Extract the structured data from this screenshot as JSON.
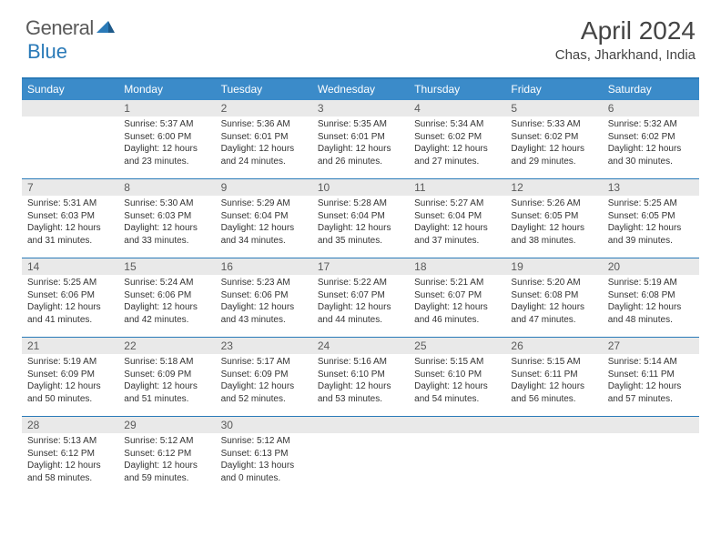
{
  "logo": {
    "text1": "General",
    "text2": "Blue"
  },
  "title": "April 2024",
  "location": "Chas, Jharkhand, India",
  "dayNames": [
    "Sunday",
    "Monday",
    "Tuesday",
    "Wednesday",
    "Thursday",
    "Friday",
    "Saturday"
  ],
  "colors": {
    "header_bg": "#3b8bc9",
    "border": "#2a7ab8",
    "daynum_bg": "#e9e9e9",
    "text": "#333333"
  },
  "weeks": [
    [
      {
        "n": "",
        "sr": "",
        "ss": "",
        "dl": ""
      },
      {
        "n": "1",
        "sr": "5:37 AM",
        "ss": "6:00 PM",
        "dl": "12 hours and 23 minutes."
      },
      {
        "n": "2",
        "sr": "5:36 AM",
        "ss": "6:01 PM",
        "dl": "12 hours and 24 minutes."
      },
      {
        "n": "3",
        "sr": "5:35 AM",
        "ss": "6:01 PM",
        "dl": "12 hours and 26 minutes."
      },
      {
        "n": "4",
        "sr": "5:34 AM",
        "ss": "6:02 PM",
        "dl": "12 hours and 27 minutes."
      },
      {
        "n": "5",
        "sr": "5:33 AM",
        "ss": "6:02 PM",
        "dl": "12 hours and 29 minutes."
      },
      {
        "n": "6",
        "sr": "5:32 AM",
        "ss": "6:02 PM",
        "dl": "12 hours and 30 minutes."
      }
    ],
    [
      {
        "n": "7",
        "sr": "5:31 AM",
        "ss": "6:03 PM",
        "dl": "12 hours and 31 minutes."
      },
      {
        "n": "8",
        "sr": "5:30 AM",
        "ss": "6:03 PM",
        "dl": "12 hours and 33 minutes."
      },
      {
        "n": "9",
        "sr": "5:29 AM",
        "ss": "6:04 PM",
        "dl": "12 hours and 34 minutes."
      },
      {
        "n": "10",
        "sr": "5:28 AM",
        "ss": "6:04 PM",
        "dl": "12 hours and 35 minutes."
      },
      {
        "n": "11",
        "sr": "5:27 AM",
        "ss": "6:04 PM",
        "dl": "12 hours and 37 minutes."
      },
      {
        "n": "12",
        "sr": "5:26 AM",
        "ss": "6:05 PM",
        "dl": "12 hours and 38 minutes."
      },
      {
        "n": "13",
        "sr": "5:25 AM",
        "ss": "6:05 PM",
        "dl": "12 hours and 39 minutes."
      }
    ],
    [
      {
        "n": "14",
        "sr": "5:25 AM",
        "ss": "6:06 PM",
        "dl": "12 hours and 41 minutes."
      },
      {
        "n": "15",
        "sr": "5:24 AM",
        "ss": "6:06 PM",
        "dl": "12 hours and 42 minutes."
      },
      {
        "n": "16",
        "sr": "5:23 AM",
        "ss": "6:06 PM",
        "dl": "12 hours and 43 minutes."
      },
      {
        "n": "17",
        "sr": "5:22 AM",
        "ss": "6:07 PM",
        "dl": "12 hours and 44 minutes."
      },
      {
        "n": "18",
        "sr": "5:21 AM",
        "ss": "6:07 PM",
        "dl": "12 hours and 46 minutes."
      },
      {
        "n": "19",
        "sr": "5:20 AM",
        "ss": "6:08 PM",
        "dl": "12 hours and 47 minutes."
      },
      {
        "n": "20",
        "sr": "5:19 AM",
        "ss": "6:08 PM",
        "dl": "12 hours and 48 minutes."
      }
    ],
    [
      {
        "n": "21",
        "sr": "5:19 AM",
        "ss": "6:09 PM",
        "dl": "12 hours and 50 minutes."
      },
      {
        "n": "22",
        "sr": "5:18 AM",
        "ss": "6:09 PM",
        "dl": "12 hours and 51 minutes."
      },
      {
        "n": "23",
        "sr": "5:17 AM",
        "ss": "6:09 PM",
        "dl": "12 hours and 52 minutes."
      },
      {
        "n": "24",
        "sr": "5:16 AM",
        "ss": "6:10 PM",
        "dl": "12 hours and 53 minutes."
      },
      {
        "n": "25",
        "sr": "5:15 AM",
        "ss": "6:10 PM",
        "dl": "12 hours and 54 minutes."
      },
      {
        "n": "26",
        "sr": "5:15 AM",
        "ss": "6:11 PM",
        "dl": "12 hours and 56 minutes."
      },
      {
        "n": "27",
        "sr": "5:14 AM",
        "ss": "6:11 PM",
        "dl": "12 hours and 57 minutes."
      }
    ],
    [
      {
        "n": "28",
        "sr": "5:13 AM",
        "ss": "6:12 PM",
        "dl": "12 hours and 58 minutes."
      },
      {
        "n": "29",
        "sr": "5:12 AM",
        "ss": "6:12 PM",
        "dl": "12 hours and 59 minutes."
      },
      {
        "n": "30",
        "sr": "5:12 AM",
        "ss": "6:13 PM",
        "dl": "13 hours and 0 minutes."
      },
      {
        "n": "",
        "sr": "",
        "ss": "",
        "dl": ""
      },
      {
        "n": "",
        "sr": "",
        "ss": "",
        "dl": ""
      },
      {
        "n": "",
        "sr": "",
        "ss": "",
        "dl": ""
      },
      {
        "n": "",
        "sr": "",
        "ss": "",
        "dl": ""
      }
    ]
  ],
  "labels": {
    "sunrise": "Sunrise:",
    "sunset": "Sunset:",
    "daylight": "Daylight:"
  }
}
